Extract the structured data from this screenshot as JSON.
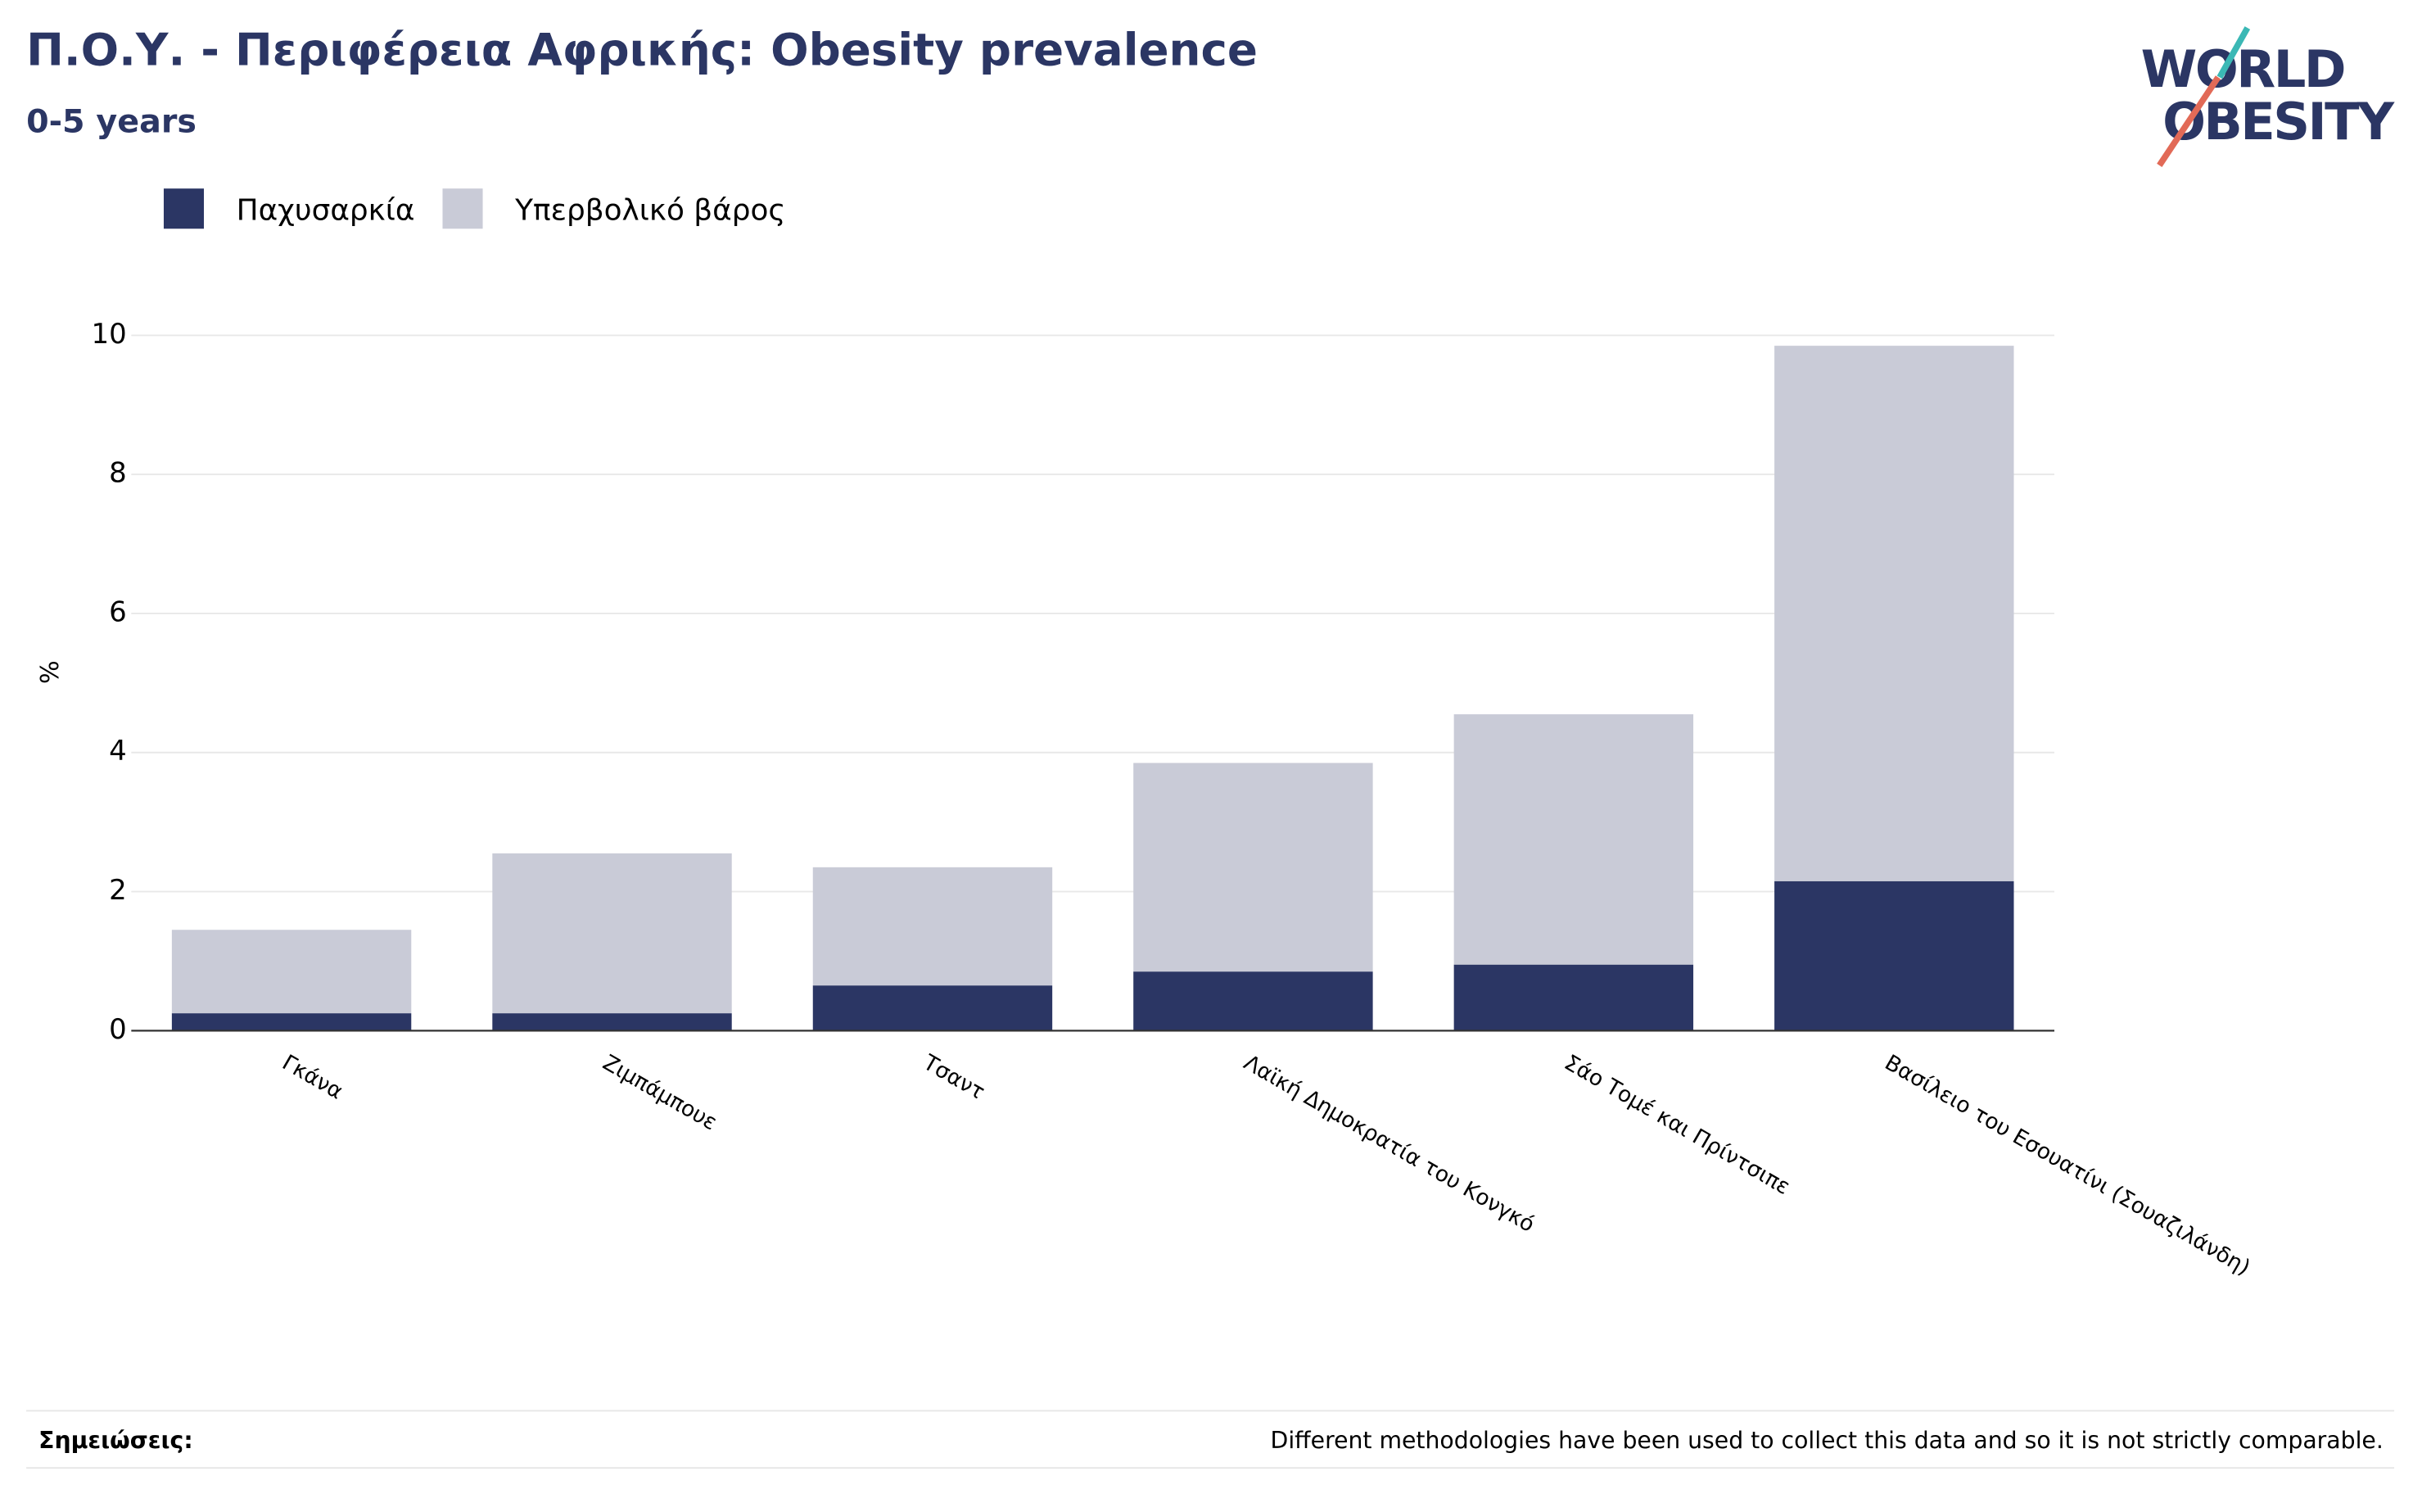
{
  "chart_data": {
    "type": "stacked_bar",
    "title": "Π.Ο.Υ. - Περιφέρεια Αφρικής: Obesity prevalence",
    "subtitle": "0-5 years",
    "y_label": "%",
    "categories": [
      "Γκάνα",
      "Ζιμπάμπουε",
      "Τσαντ",
      "Λαϊκή Δημοκρατία του Κονγκό",
      "Σάο Τομέ και Πρίντσιπε",
      "Βασίλειο του Εσουατίνι (Σουαζιλάνδη)"
    ],
    "series": [
      {
        "name": "Παχυσαρκία",
        "color": "#2b3664",
        "values": [
          0.25,
          0.25,
          0.65,
          0.85,
          0.95,
          2.15
        ]
      },
      {
        "name": "Υπερβολικό βάρος",
        "color": "#c9cbd7",
        "values": [
          1.2,
          2.3,
          1.7,
          3.0,
          3.6,
          7.7
        ]
      }
    ],
    "ylim": [
      0,
      10
    ],
    "yticks": [
      0,
      2,
      4,
      6,
      8,
      10
    ],
    "grid": true,
    "legend": "top-left",
    "notes_label": "Σημειώσεις:",
    "notes": "Different methodologies have been used to collect this data and so it is not strictly comparable.",
    "logo": {
      "line1": "WORLD",
      "line2": "OBESITY"
    }
  }
}
